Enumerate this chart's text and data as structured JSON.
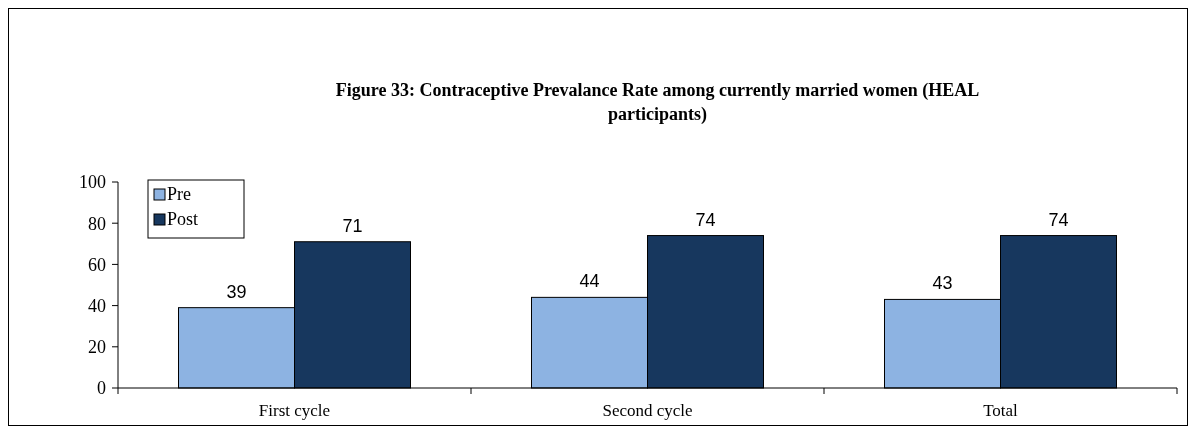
{
  "chart_data": {
    "type": "bar",
    "title": "Figure 33:  Contraceptive Prevalance Rate among currently married women (HEAL participants)",
    "categories": [
      "First cycle",
      "Second cycle",
      "Total"
    ],
    "series": [
      {
        "name": "Pre",
        "color": "#8db3e2",
        "values": [
          39,
          44,
          43
        ]
      },
      {
        "name": "Post",
        "color": "#17375e",
        "values": [
          71,
          74,
          74
        ]
      }
    ],
    "ylim": [
      0,
      100
    ],
    "yticks": [
      0,
      20,
      40,
      60,
      80,
      100
    ],
    "data_labels": true,
    "legend": "top left",
    "grid": false
  }
}
